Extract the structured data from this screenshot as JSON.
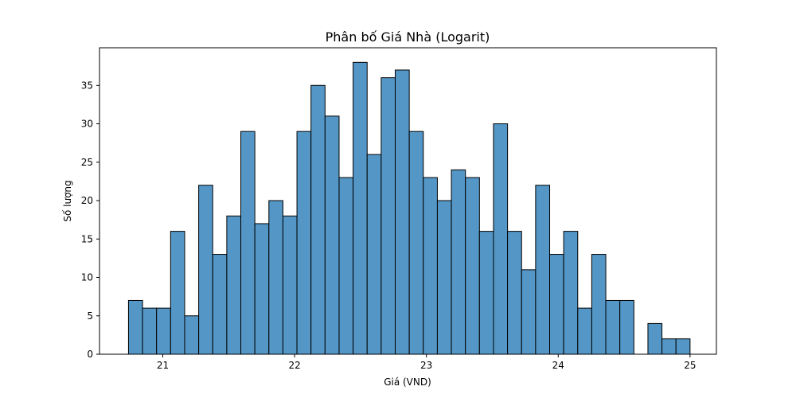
{
  "chart_data": {
    "type": "bar",
    "title": "Phân bố Giá Nhà (Logarit)",
    "xlabel": "Giá (VND)",
    "ylabel": "Số lượng",
    "xlim": [
      20.52,
      25.2
    ],
    "ylim": [
      0,
      39.9
    ],
    "xticks": [
      21,
      22,
      23,
      24,
      25
    ],
    "yticks": [
      0,
      5,
      10,
      15,
      20,
      25,
      30,
      35
    ],
    "bin_start": 20.74,
    "bin_width": 0.1065,
    "values": [
      7,
      6,
      6,
      16,
      5,
      22,
      13,
      18,
      29,
      17,
      20,
      18,
      29,
      35,
      31,
      23,
      38,
      26,
      36,
      37,
      29,
      23,
      20,
      24,
      23,
      16,
      30,
      16,
      11,
      22,
      13,
      16,
      6,
      13,
      7,
      7,
      0,
      4,
      2,
      2
    ],
    "bar_color": "#5497c7",
    "edge_color": "#000000",
    "grid": false,
    "legend": "none"
  }
}
